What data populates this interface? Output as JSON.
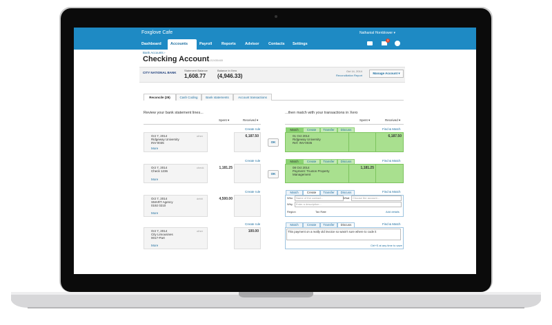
{
  "header": {
    "company": "Foxglove Cafe",
    "user": "Nathanial Hornblower ▾",
    "notifications": "3"
  },
  "nav": [
    "Dashboard",
    "Accounts",
    "Payroll",
    "Reports",
    "Advisor",
    "Contacts",
    "Settings"
  ],
  "account": {
    "breadcrumb": "Bank Accounts ›",
    "title": "Checking Account",
    "number": "132435465",
    "bank": "CITY NATIONAL BANK",
    "statement_balance_label": "Statement Balance",
    "statement_balance": "1,608.77",
    "xero_balance_label": "Balance in Xero",
    "xero_balance": "(4,946.33)",
    "date": "Oct 14, 2014",
    "report": "Reconciliation Report",
    "manage": "Manage Account ▾"
  },
  "tabs": [
    "Reconcile (29)",
    "Cash Coding",
    "Bank statements",
    "Account transactions"
  ],
  "left": {
    "heading": "Review your bank statement lines...",
    "spent": "Spent ▾",
    "received": "Received ▾",
    "create_rule": "Create rule",
    "more": "More",
    "lines": [
      {
        "date": "Oct 7, 2014",
        "payee": "Ridgeway University",
        "reference": "INV-0035",
        "type": "other",
        "amount": "6,187.50",
        "side": "received"
      },
      {
        "date": "Oct 7, 2014",
        "payee": "Check 1236",
        "type": "check",
        "amount": "1,181.25",
        "side": "spent"
      },
      {
        "date": "Oct 7, 2014",
        "payee": "SMART Agency",
        "reference": "0192 0210",
        "type": "debit",
        "amount": "4,500.00",
        "side": "spent"
      },
      {
        "date": "Oct 7, 2014",
        "payee": "City Limousines",
        "reference": "0017-Part",
        "type": "other",
        "amount": "100.00",
        "side": "received"
      }
    ]
  },
  "ok": "OK",
  "right": {
    "heading": "...then match with your transactions in Xero",
    "spent": "Spent ▾",
    "received": "Received ▾",
    "tabs": [
      "Match",
      "Create",
      "Transfer",
      "Discuss"
    ],
    "find": "Find & Match",
    "matches": [
      {
        "date": "01 Oct 2014",
        "text": "Ridgeway University",
        "reference": "Ref: INV-0035",
        "amount": "6,187.50",
        "side": "received"
      },
      {
        "date": "08 Oct 2014",
        "text": "Payment: Truxton Property Management",
        "amount": "1,181.25",
        "side": "spent"
      }
    ],
    "create": {
      "who_label": "Who",
      "who": "Name of the contact...",
      "what_label": "What",
      "what": "Choose the account...",
      "why_label": "Why",
      "why": "Enter a description...",
      "region": "Region",
      "tax": "Tax Rate",
      "add": "Add details"
    },
    "discuss": {
      "text": "This payment on a really old invoice so wasn't sure where to code it",
      "save": "Ctrl+S at any time to save"
    }
  }
}
